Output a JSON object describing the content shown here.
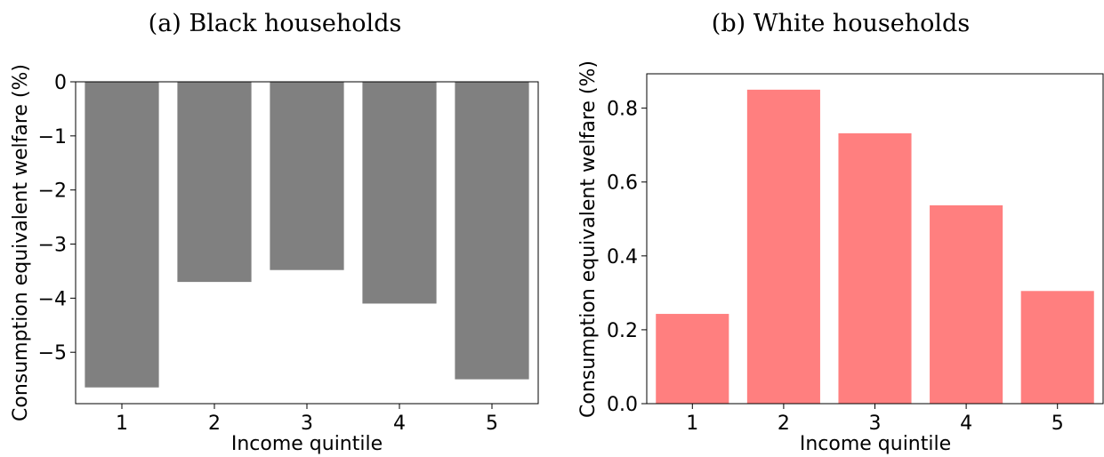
{
  "chart_data": [
    {
      "type": "bar",
      "title": "(a) Black households",
      "xlabel": "Income quintile",
      "ylabel": "Consumption equivalent welfare (%)",
      "categories": [
        "1",
        "2",
        "3",
        "4",
        "5"
      ],
      "values": [
        -5.65,
        -3.7,
        -3.48,
        -4.1,
        -5.5
      ],
      "ylim": [
        -5.95,
        0
      ],
      "yticks": [
        0,
        -1,
        -2,
        -3,
        -4,
        -5
      ],
      "ytick_labels": [
        "0",
        "−1",
        "−2",
        "−3",
        "−4",
        "−5"
      ],
      "color": "#808080",
      "grid": false,
      "frame": "full"
    },
    {
      "type": "bar",
      "title": "(b) White households",
      "xlabel": "Income quintile",
      "ylabel": "Consumption equivalent welfare (%)",
      "categories": [
        "1",
        "2",
        "3",
        "4",
        "5"
      ],
      "values": [
        0.243,
        0.85,
        0.732,
        0.537,
        0.305
      ],
      "ylim": [
        0,
        0.893
      ],
      "yticks": [
        0,
        0.2,
        0.4,
        0.6,
        0.8
      ],
      "ytick_labels": [
        "0.0",
        "0.2",
        "0.4",
        "0.6",
        "0.8"
      ],
      "color": "#ff7f7f",
      "grid": false,
      "frame": "full"
    }
  ]
}
